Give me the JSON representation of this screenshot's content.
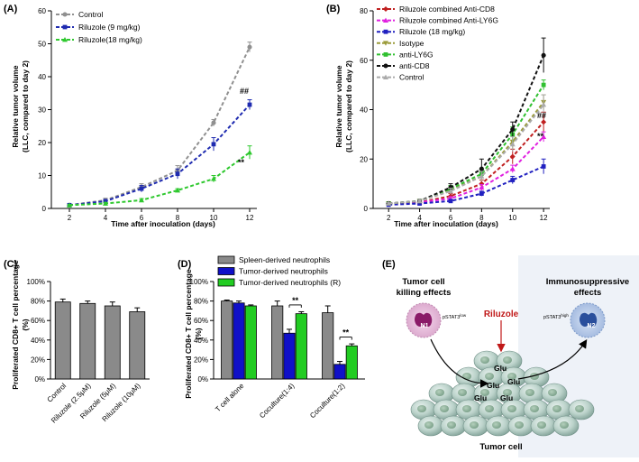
{
  "chart_data": [
    {
      "panel": "(A)",
      "type": "line",
      "xlabel": "Time after inoculation (days)",
      "ylabel": "Relative tumor volume",
      "ylabel2": "(LLC, compared to day 2)",
      "x": [
        2,
        4,
        6,
        8,
        10,
        12
      ],
      "ylim": [
        0,
        60
      ],
      "yticks": [
        0,
        10,
        20,
        30,
        40,
        50,
        60
      ],
      "legend_position": "top-left",
      "series": [
        {
          "name": "Control",
          "color": "#909090",
          "marker": "circle",
          "values": [
            1,
            2.5,
            6.5,
            11.5,
            26,
            49
          ],
          "errors": [
            0.3,
            0.6,
            1,
            1.5,
            1,
            1.5
          ]
        },
        {
          "name": "Riluzole (9 mg/kg)",
          "color": "#1f2bb0",
          "marker": "square",
          "values": [
            1,
            2.2,
            6,
            10.5,
            19.5,
            31.5
          ],
          "errors": [
            0.3,
            0.5,
            1,
            1.5,
            2,
            1.5
          ]
        },
        {
          "name": "Riluzole(18 mg/kg)",
          "color": "#2ec82e",
          "marker": "triangle",
          "values": [
            1,
            1.5,
            2.5,
            5.5,
            9,
            17
          ],
          "errors": [
            0.2,
            0.3,
            0.5,
            0.5,
            1,
            2
          ]
        }
      ],
      "annotations": [
        "##",
        "**"
      ]
    },
    {
      "panel": "(B)",
      "type": "line",
      "xlabel": "Time after inoculation (days)",
      "ylabel": "Relative tumor volume",
      "ylabel2": "(LLC, compared to day 2)",
      "x": [
        2,
        4,
        6,
        8,
        10,
        12
      ],
      "ylim": [
        0,
        80
      ],
      "yticks": [
        0,
        20,
        40,
        60,
        80
      ],
      "legend_position": "top-left",
      "series": [
        {
          "name": "Riluzole combined Anti-CD8",
          "color": "#c02020",
          "marker": "diamond",
          "values": [
            2,
            2.5,
            5,
            10,
            21,
            35
          ],
          "errors": [
            0.3,
            0.5,
            1,
            1.5,
            3,
            4
          ]
        },
        {
          "name": "Riluzole combined Anti-LY6G",
          "color": "#e020e0",
          "marker": "triangle",
          "values": [
            2,
            2.5,
            4,
            8.5,
            16,
            29
          ],
          "errors": [
            0.3,
            0.5,
            0.8,
            1.2,
            1.5,
            2
          ]
        },
        {
          "name": "Riluzole (18 mg/kg)",
          "color": "#2020c0",
          "marker": "square",
          "values": [
            1.5,
            2,
            3,
            6,
            11.5,
            17
          ],
          "errors": [
            0.3,
            0.4,
            0.6,
            1,
            1.5,
            3
          ]
        },
        {
          "name": "Isotype",
          "color": "#9b9b3a",
          "marker": "triangle-down",
          "values": [
            2,
            3,
            7.5,
            13,
            27,
            43
          ],
          "errors": [
            0.3,
            0.6,
            1.2,
            2,
            3,
            3
          ]
        },
        {
          "name": "anti-LY6G",
          "color": "#30c030",
          "marker": "square",
          "values": [
            2,
            3,
            8,
            14,
            30,
            50
          ],
          "errors": [
            0.3,
            0.6,
            1.3,
            2,
            3,
            2
          ]
        },
        {
          "name": "anti-CD8",
          "color": "#111111",
          "marker": "circle",
          "values": [
            2,
            3,
            8.5,
            16,
            32,
            62
          ],
          "errors": [
            0.3,
            0.6,
            1.5,
            4,
            3,
            7
          ]
        },
        {
          "name": "Control",
          "color": "#aaaaaa",
          "marker": "triangle",
          "values": [
            2,
            3,
            7,
            13,
            26,
            42
          ],
          "errors": [
            0.3,
            0.6,
            1.2,
            2,
            3,
            4
          ]
        }
      ],
      "annotations": [
        "##",
        "**"
      ]
    },
    {
      "panel": "(C)",
      "type": "bar",
      "ylabel": "Proliferated CD8+ T cell percentage",
      "ylabel2": "(%)",
      "ylim": [
        0,
        100
      ],
      "yticks": [
        "0%",
        "20%",
        "40%",
        "60%",
        "80%",
        "100%"
      ],
      "categories": [
        "Control",
        "Riluzole (2.5μM)",
        "Riluzole (5μM)",
        "Riluzole (10μM)"
      ],
      "values": [
        79,
        77.5,
        75,
        69
      ],
      "errors": [
        3,
        2.5,
        4,
        4
      ],
      "color": "#8a8a8a"
    },
    {
      "panel": "(D)",
      "type": "bar",
      "ylabel": "Proliferated CD8+ T cell percentage",
      "ylabel2": "(%)",
      "ylim": [
        0,
        100
      ],
      "yticks": [
        "0%",
        "20%",
        "40%",
        "60%",
        "80%",
        "100%"
      ],
      "legend_position": "top",
      "categories": [
        "T cell alone",
        "Coculture(1:4)",
        "Coculture(1:2)"
      ],
      "series": [
        {
          "name": "Spleen-derived neutrophils",
          "color": "#8a8a8a",
          "values": [
            80,
            75,
            68
          ],
          "errors": [
            1,
            5,
            7
          ]
        },
        {
          "name": "Tumor-derived neutrophils",
          "color": "#1010c8",
          "values": [
            78,
            47,
            15
          ],
          "errors": [
            2,
            4,
            3
          ]
        },
        {
          "name": "Tumor-derived neutrophils (R)",
          "color": "#22cc22",
          "values": [
            75,
            67,
            34
          ],
          "errors": [
            1,
            2,
            2
          ]
        }
      ],
      "annotations": [
        "**",
        "**"
      ]
    }
  ],
  "diagram": {
    "panel": "(E)",
    "left_label_1": "Tumor cell",
    "left_label_2": "killing effects",
    "right_label_1": "Immunosuppressive",
    "right_label_2": "effects",
    "n1_label": "N1",
    "n1_stat_main": "pSTAT3",
    "n1_stat_sup": "low",
    "n2_label": "N2",
    "n2_stat_main": "pSTAT3",
    "n2_stat_sup": "high",
    "drug_label": "Riluzole",
    "glu_labels": [
      "Glu",
      "Glu",
      "Glu",
      "Glu",
      "Glu"
    ],
    "tumor_label": "Tumor cell"
  }
}
